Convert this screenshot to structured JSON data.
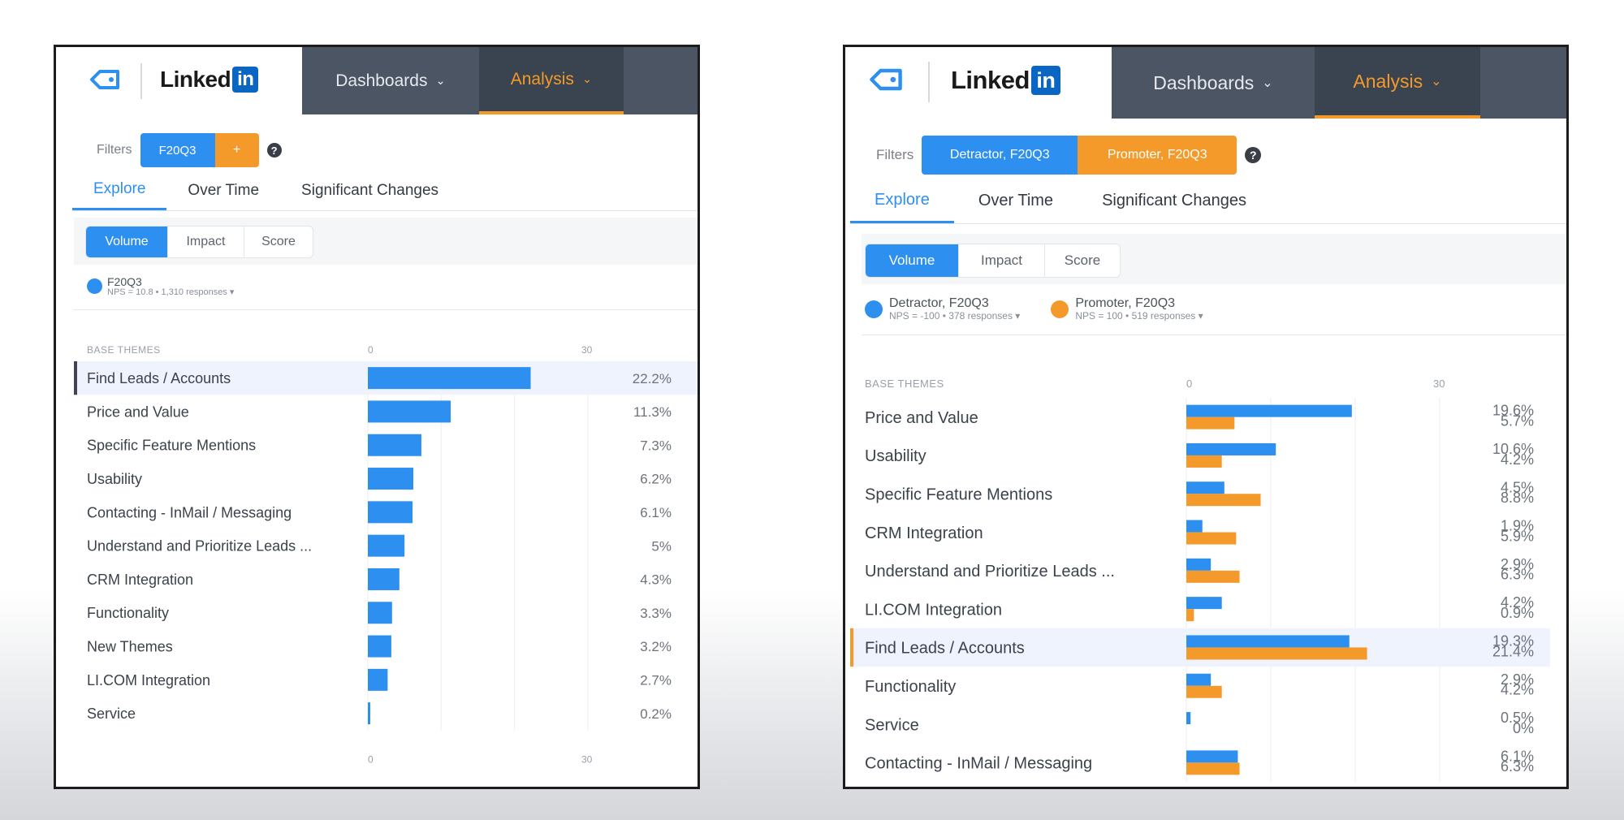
{
  "colors": {
    "blue": "#2d8ff0",
    "orange": "#f39a2b",
    "nav": "#4b5563",
    "highlight_row": "#eef3fd"
  },
  "panels": {
    "left": {
      "brand": {
        "icon": "tag-icon",
        "logo_text": "Linked",
        "logo_in": "in"
      },
      "nav": {
        "dashboards": "Dashboards",
        "analysis": "Analysis"
      },
      "filters": {
        "label": "Filters",
        "chip1": "F20Q3",
        "chip2": "+"
      },
      "tabs": {
        "explore": "Explore",
        "over_time": "Over Time",
        "significant": "Significant Changes"
      },
      "modes": {
        "volume": "Volume",
        "impact": "Impact",
        "score": "Score"
      },
      "legend": [
        {
          "name": "F20Q3",
          "meta": "NPS = 10.8 • 1,310 responses ▾"
        }
      ]
    },
    "right": {
      "brand": {
        "icon": "tag-icon",
        "logo_text": "Linked",
        "logo_in": "in"
      },
      "nav": {
        "dashboards": "Dashboards",
        "analysis": "Analysis"
      },
      "filters": {
        "label": "Filters",
        "chip1": "Detractor, F20Q3",
        "chip2": "Promoter, F20Q3"
      },
      "tabs": {
        "explore": "Explore",
        "over_time": "Over Time",
        "significant": "Significant Changes"
      },
      "modes": {
        "volume": "Volume",
        "impact": "Impact",
        "score": "Score"
      },
      "legend": [
        {
          "name": "Detractor, F20Q3",
          "meta": "NPS = -100 • 378 responses ▾"
        },
        {
          "name": "Promoter, F20Q3",
          "meta": "NPS = 100 • 519 responses ▾"
        }
      ]
    }
  },
  "chart_data": [
    {
      "type": "bar",
      "orientation": "horizontal",
      "section_label": "BASE THEMES",
      "xlim": [
        0,
        30
      ],
      "tick_labels": [
        "0",
        "30"
      ],
      "highlighted_category": "Find Leads / Accounts",
      "categories": [
        "Find Leads / Accounts",
        "Price and Value",
        "Specific Feature Mentions",
        "Usability",
        "Contacting - InMail / Messaging",
        "Understand and Prioritize Leads ...",
        "CRM Integration",
        "Functionality",
        "New Themes",
        "LI.COM Integration",
        "Service"
      ],
      "series": [
        {
          "name": "F20Q3",
          "values": [
            22.2,
            11.3,
            7.3,
            6.2,
            6.1,
            5,
            4.3,
            3.3,
            3.2,
            2.7,
            0.2
          ],
          "labels": [
            "22.2%",
            "11.3%",
            "7.3%",
            "6.2%",
            "6.1%",
            "5%",
            "4.3%",
            "3.3%",
            "3.2%",
            "2.7%",
            "0.2%"
          ]
        }
      ]
    },
    {
      "type": "bar",
      "orientation": "horizontal",
      "section_label": "BASE THEMES",
      "xlim": [
        0,
        30
      ],
      "tick_labels": [
        "0",
        "30"
      ],
      "highlighted_category": "Find Leads / Accounts",
      "categories": [
        "Price and Value",
        "Usability",
        "Specific Feature Mentions",
        "CRM Integration",
        "Understand and Prioritize Leads ...",
        "LI.COM Integration",
        "Find Leads / Accounts",
        "Functionality",
        "Service",
        "Contacting - InMail / Messaging"
      ],
      "series": [
        {
          "name": "Detractor, F20Q3",
          "values": [
            19.6,
            10.6,
            4.5,
            1.9,
            2.9,
            4.2,
            19.3,
            2.9,
            0.5,
            6.1
          ],
          "labels": [
            "19.6%",
            "10.6%",
            "4.5%",
            "1.9%",
            "2.9%",
            "4.2%",
            "19.3%",
            "2.9%",
            "0.5%",
            "6.1%"
          ]
        },
        {
          "name": "Promoter, F20Q3",
          "values": [
            5.7,
            4.2,
            8.8,
            5.9,
            6.3,
            0.9,
            21.4,
            4.2,
            0,
            6.3
          ],
          "labels": [
            "5.7%",
            "4.2%",
            "8.8%",
            "5.9%",
            "6.3%",
            "0.9%",
            "21.4%",
            "4.2%",
            "0%",
            "6.3%"
          ]
        }
      ]
    }
  ]
}
